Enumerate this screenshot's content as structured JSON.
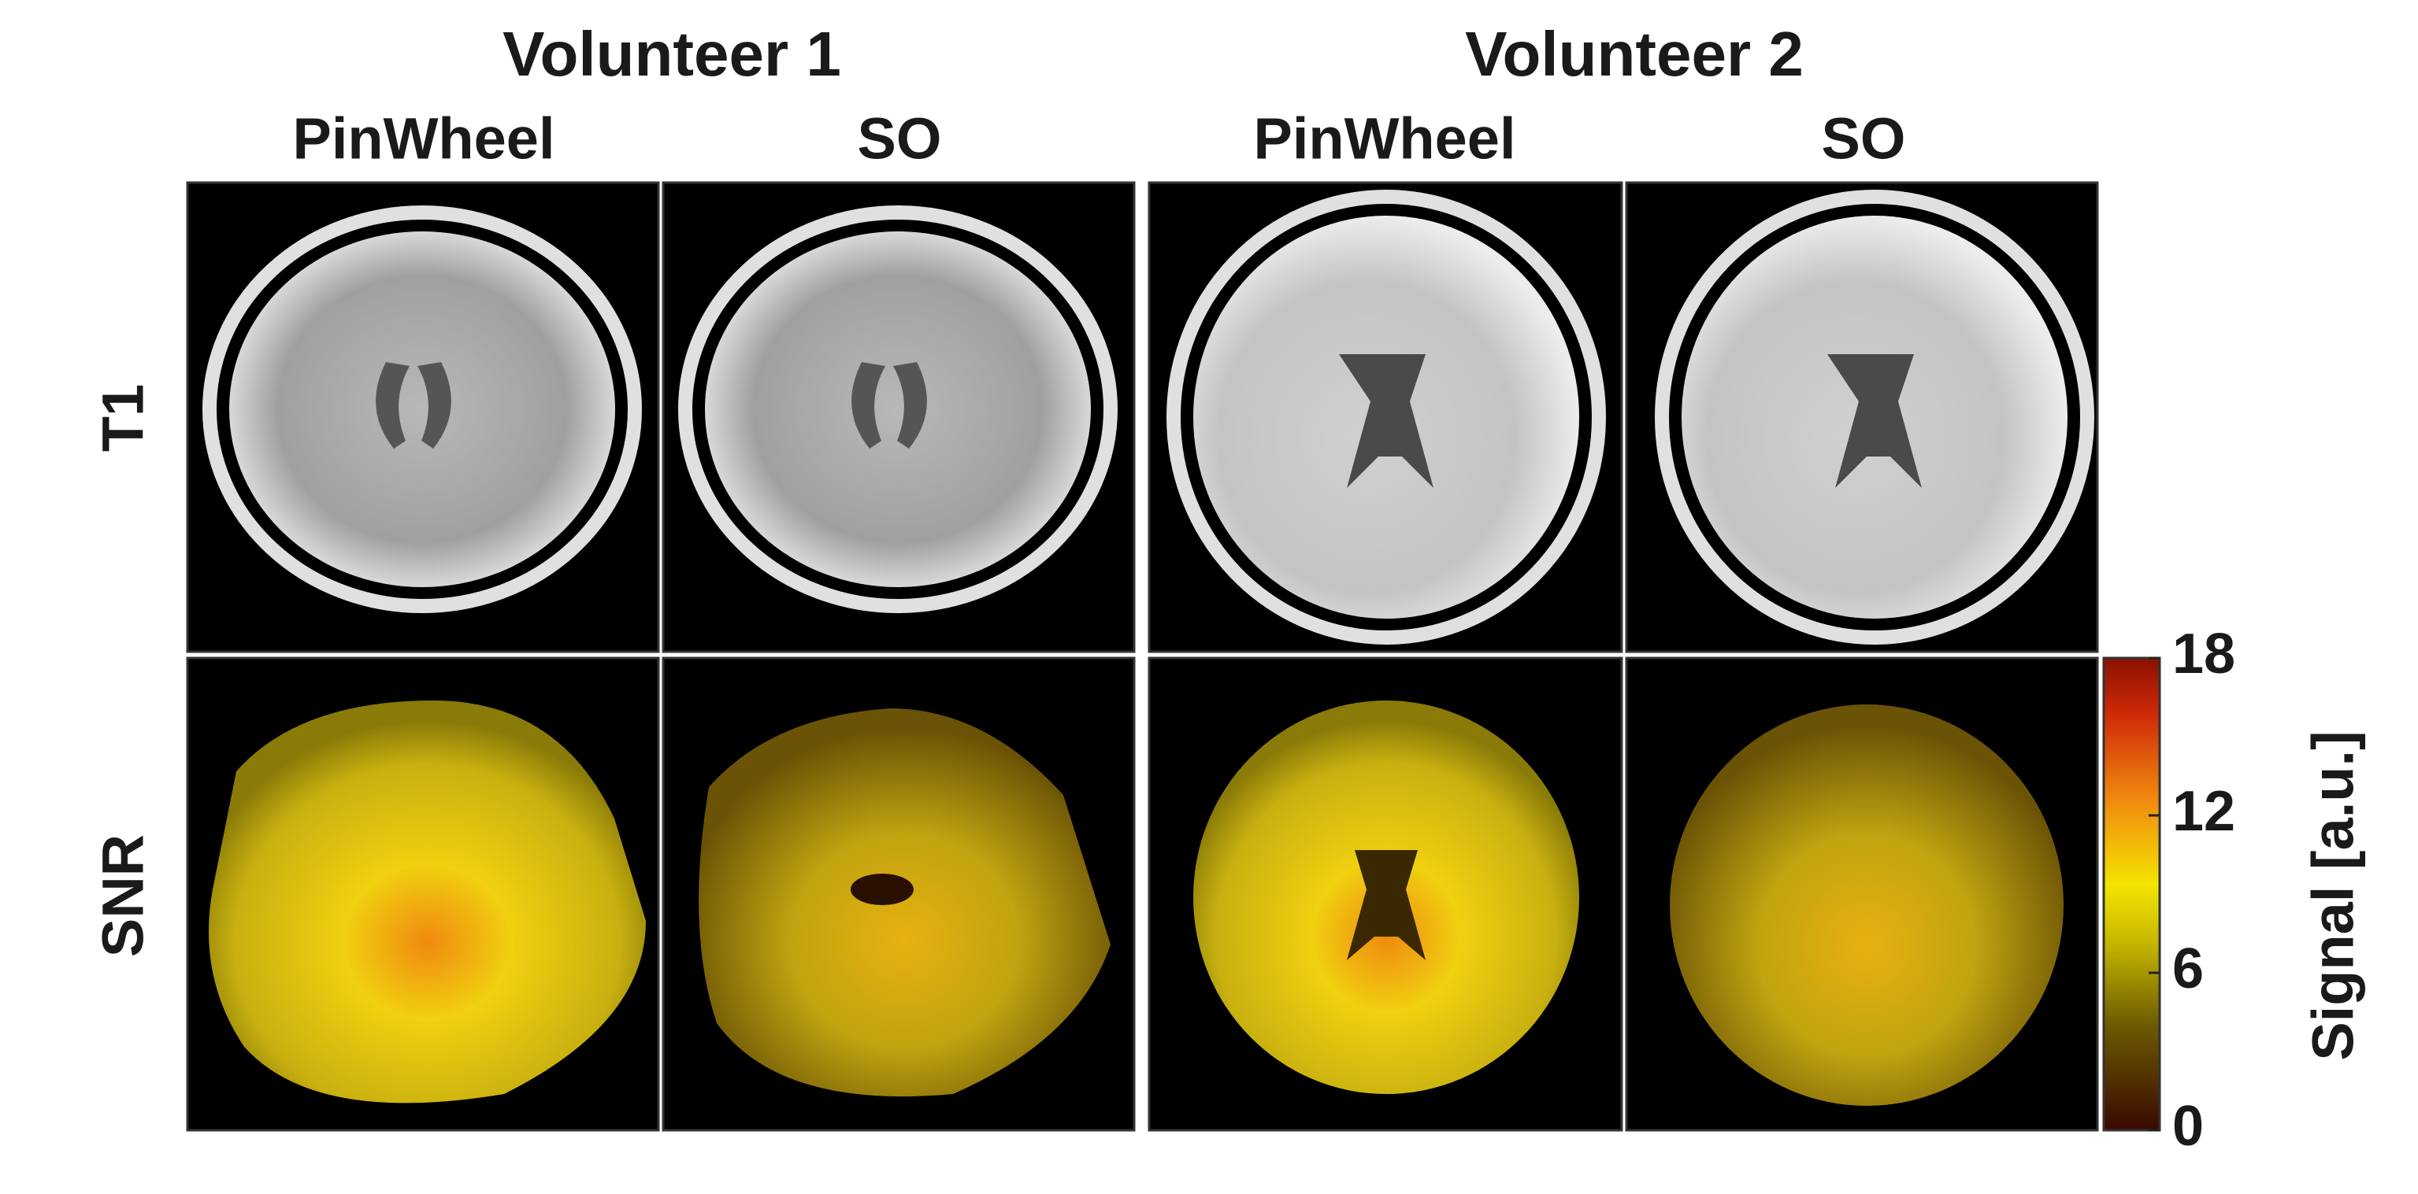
{
  "figure": {
    "groups": [
      "Volunteer 1",
      "Volunteer 2"
    ],
    "columns": [
      "PinWheel",
      "SO",
      "PinWheel",
      "SO"
    ],
    "rows": [
      "T1",
      "SNR"
    ],
    "colorbar": {
      "label": "Signal [a.u.]",
      "lim": [
        0,
        18
      ],
      "ticks": [
        0,
        6,
        12,
        18
      ]
    }
  }
}
